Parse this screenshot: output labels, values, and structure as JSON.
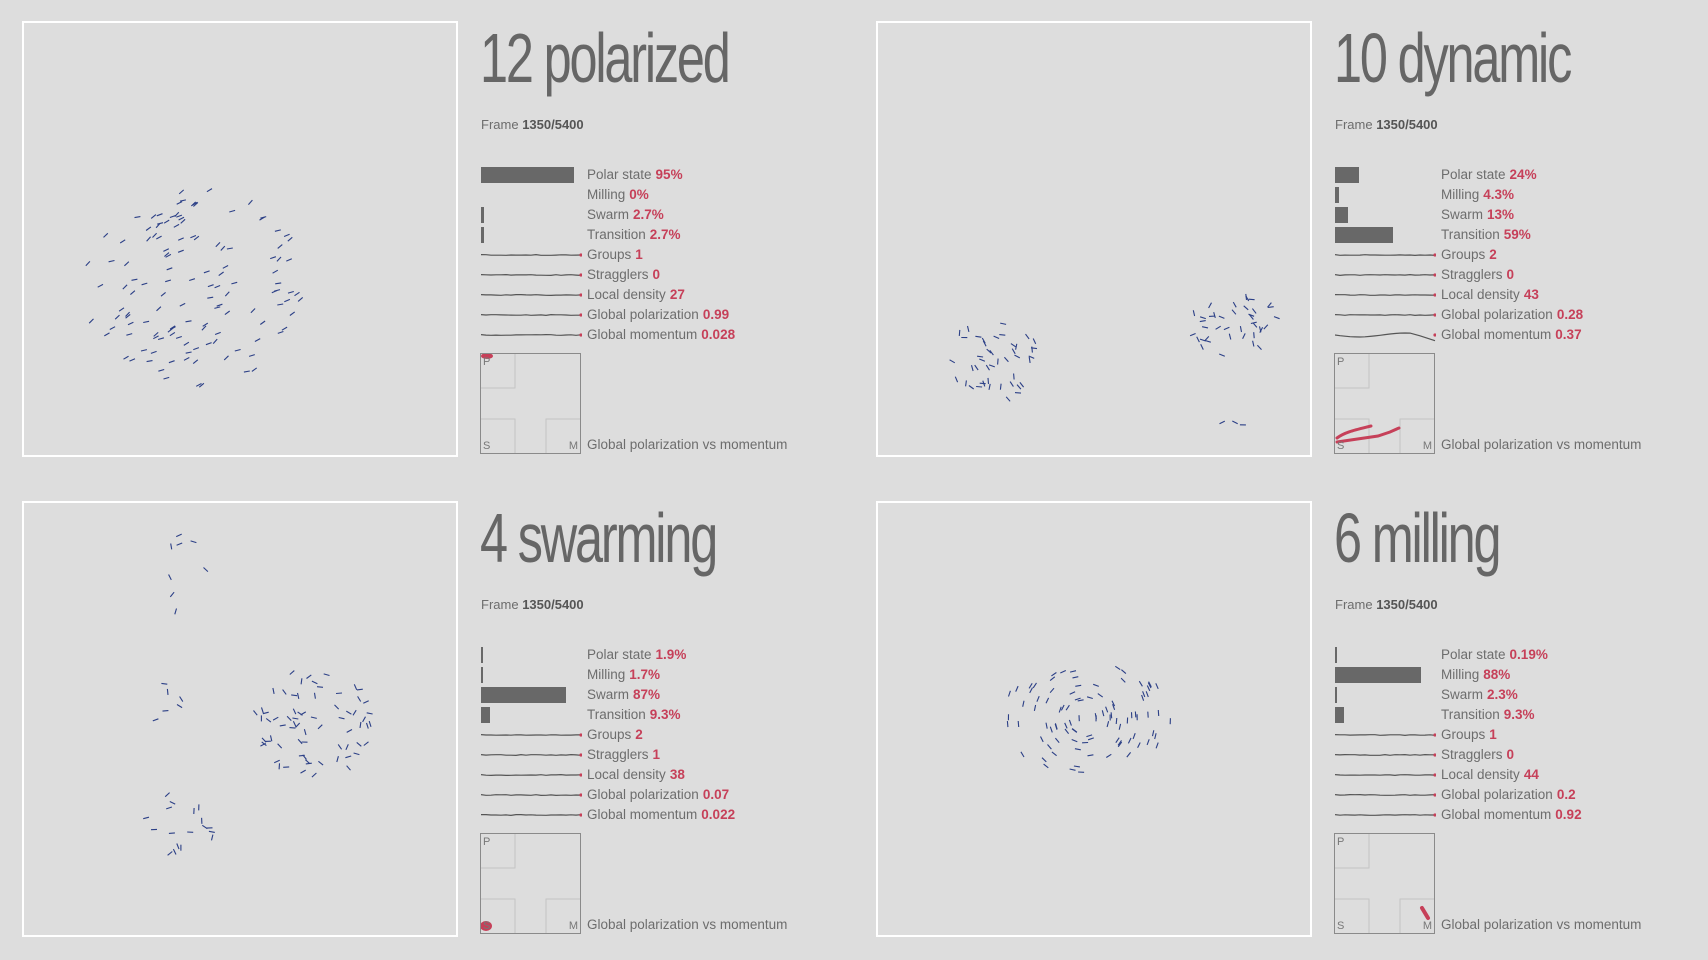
{
  "colors": {
    "background": "#dddddd",
    "agent": "#2b3f86",
    "accent": "#c64059",
    "bar": "#686868",
    "border": "#ffffff"
  },
  "frame_label": "Frame",
  "pm_caption": "Global polarization vs momentum",
  "pm_letters": {
    "p": "P",
    "s": "S",
    "m": "M"
  },
  "metric_labels": [
    "Polar state",
    "Milling",
    "Swarm",
    "Transition",
    "Groups",
    "Stragglers",
    "Local density",
    "Global polarization",
    "Global momentum"
  ],
  "panels": [
    {
      "title": "12 polarized",
      "frame": "1350/5400",
      "values": [
        "95%",
        "0%",
        "2.7%",
        "2.7%",
        "1",
        "0",
        "27",
        "0.99",
        "0.028"
      ],
      "fractions": [
        0.95,
        0.0,
        0.027,
        0.027
      ],
      "pm_state": "P"
    },
    {
      "title": "10 dynamic",
      "frame": "1350/5400",
      "values": [
        "24%",
        "4.3%",
        "13%",
        "59%",
        "2",
        "0",
        "43",
        "0.28",
        "0.37"
      ],
      "fractions": [
        0.24,
        0.043,
        0.13,
        0.59
      ],
      "pm_state": "dynamic"
    },
    {
      "title": "4 swarming",
      "frame": "1350/5400",
      "values": [
        "1.9%",
        "1.7%",
        "87%",
        "9.3%",
        "2",
        "1",
        "38",
        "0.07",
        "0.022"
      ],
      "fractions": [
        0.019,
        0.017,
        0.87,
        0.093
      ],
      "pm_state": "S"
    },
    {
      "title": "6 milling",
      "frame": "1350/5400",
      "values": [
        "0.19%",
        "88%",
        "2.3%",
        "9.3%",
        "1",
        "0",
        "44",
        "0.2",
        "0.92"
      ],
      "fractions": [
        0.0019,
        0.88,
        0.023,
        0.093
      ],
      "pm_state": "M"
    }
  ]
}
